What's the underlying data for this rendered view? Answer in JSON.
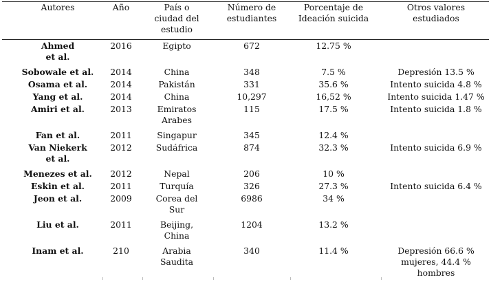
{
  "headers": [
    "Autores",
    "Año",
    "País o\nciudad del\nestudio",
    "Número de\nestudiantes",
    "Porcentaje de\nIdeación suicida",
    "Otros valores\nestudiados"
  ],
  "rows": [
    {
      "autor": "Ahmed\net al.",
      "anio": "2016",
      "pais": "Egipto",
      "n": "672",
      "pct": "12.75 %",
      "otros": ""
    },
    {
      "autor": "Sobowale et al.",
      "anio": "2014",
      "pais": "China",
      "n": "348",
      "pct": "7.5 %",
      "otros": "Depresión 13.5 %"
    },
    {
      "autor": "Osama et al.",
      "anio": "2014",
      "pais": "Pakistán",
      "n": "331",
      "pct": "35.6 %",
      "otros": "Intento suicida 4.8 %"
    },
    {
      "autor": "Yang et al.",
      "anio": "2014",
      "pais": "China",
      "n": "10,297",
      "pct": "16,52 %",
      "otros": "Intento suicida 1.47 %"
    },
    {
      "autor": "Amiri et al.",
      "anio": "2013",
      "pais": "Emiratos\nArabes",
      "n": "115",
      "pct": "17.5 %",
      "otros": "Intento suicida 1.8 %"
    },
    {
      "autor": "Fan et al.",
      "anio": "2011",
      "pais": "Singapur",
      "n": "345",
      "pct": "12.4 %",
      "otros": ""
    },
    {
      "autor": "Van Niekerk\net al.",
      "anio": "2012",
      "pais": "Sudáfrica",
      "n": "874",
      "pct": "32.3 %",
      "otros": "Intento suicida 6.9 %"
    },
    {
      "autor": "Menezes et al.",
      "anio": "2012",
      "pais": "Nepal",
      "n": "206",
      "pct": "10 %",
      "otros": ""
    },
    {
      "autor": "Eskin et al.",
      "anio": "2011",
      "pais": "Turquía",
      "n": "326",
      "pct": "27.3 %",
      "otros": "Intento suicida 6.4 %"
    },
    {
      "autor": "Jeon et al.",
      "anio": "2009",
      "pais": "Corea del\nSur",
      "n": "6986",
      "pct": "34 %",
      "otros": ""
    },
    {
      "autor": "Liu et al.",
      "anio": "2011",
      "pais": "Beijing,\nChina",
      "n": "1204",
      "pct": "13.2 %",
      "otros": ""
    },
    {
      "autor": "Inam et al.",
      "anio": "210",
      "pais": "Arabia\nSaudita",
      "n": "340",
      "pct": "11.4 %",
      "otros": "Depresión 66.6 %\nmujeres, 44.4 %\nhombres"
    }
  ]
}
